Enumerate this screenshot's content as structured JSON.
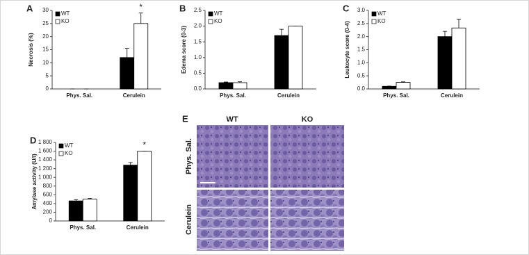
{
  "chart_data": [
    {
      "type": "bar",
      "label": "A",
      "y_label": "Necrosis (%)",
      "categories": [
        "Phys. Sal.",
        "Cerulein"
      ],
      "series": [
        {
          "name": "WT",
          "color": "#000000",
          "values": [
            0,
            12
          ],
          "errors": [
            0,
            3.5
          ]
        },
        {
          "name": "KO",
          "color": "#ffffff",
          "values": [
            0,
            25
          ],
          "errors": [
            0,
            4
          ]
        }
      ],
      "ylim": [
        0,
        30
      ],
      "yticks": [
        0,
        5,
        10,
        15,
        20,
        25,
        30
      ],
      "legend": "upper left",
      "annotation": "*"
    },
    {
      "type": "bar",
      "label": "B",
      "y_label": "Edema score (0-3)",
      "categories": [
        "Phys. Sal.",
        "Cerulein"
      ],
      "series": [
        {
          "name": "WT",
          "color": "#000000",
          "values": [
            0.2,
            1.7
          ],
          "errors": [
            0.02,
            0.2
          ]
        },
        {
          "name": "KO",
          "color": "#ffffff",
          "values": [
            0.2,
            2.0
          ],
          "errors": [
            0.03,
            0
          ]
        }
      ],
      "ylim": [
        0,
        2.5
      ],
      "yticks": [
        {
          "value": 0,
          "label": "0.0"
        },
        0.5,
        {
          "value": 1,
          "label": "1.0"
        },
        1.5,
        {
          "value": 2,
          "label": "2.0"
        },
        2.5
      ],
      "legend": "upper left"
    },
    {
      "type": "bar",
      "label": "C",
      "y_label": "Leukocyte score (0-4)",
      "categories": [
        "Phys. Sal.",
        "Cerulein"
      ],
      "series": [
        {
          "name": "WT",
          "color": "#000000",
          "values": [
            0.1,
            2.0
          ],
          "errors": [
            0.01,
            0.2
          ]
        },
        {
          "name": "KO",
          "color": "#ffffff",
          "values": [
            0.25,
            2.33
          ],
          "errors": [
            0.02,
            0.33
          ]
        }
      ],
      "ylim": [
        0,
        3
      ],
      "yticks": [
        {
          "value": 0,
          "label": "0.0"
        },
        0.5,
        {
          "value": 1,
          "label": "1.0"
        },
        1.5,
        {
          "value": 2,
          "label": "2.0"
        },
        2.5,
        {
          "value": 3,
          "label": "3.0"
        }
      ],
      "legend": "upper left"
    },
    {
      "type": "bar",
      "label": "D",
      "y_label": "Amylase activity (U/l)",
      "categories": [
        "Phys. Sal.",
        "Cerulein"
      ],
      "series": [
        {
          "name": "WT",
          "color": "#000000",
          "values": [
            460,
            1280
          ],
          "errors": [
            30,
            60
          ]
        },
        {
          "name": "KO",
          "color": "#ffffff",
          "values": [
            500,
            1600
          ],
          "errors": [
            15,
            0
          ]
        }
      ],
      "ylim": [
        0,
        1800
      ],
      "yticks": [
        0,
        200,
        400,
        600,
        800,
        {
          "value": 1000,
          "label": "1 000"
        },
        {
          "value": 1200,
          "label": "1 200"
        },
        {
          "value": 1400,
          "label": "1 400"
        },
        {
          "value": 1600,
          "label": "1 600"
        },
        {
          "value": 1800,
          "label": "1 800"
        }
      ],
      "legend": "upper left",
      "annotation": "*"
    }
  ],
  "panel_e": {
    "label": "E",
    "columns": [
      "WT",
      "KO"
    ],
    "rows": [
      "Phys. Sal.",
      "Cerulein"
    ]
  }
}
